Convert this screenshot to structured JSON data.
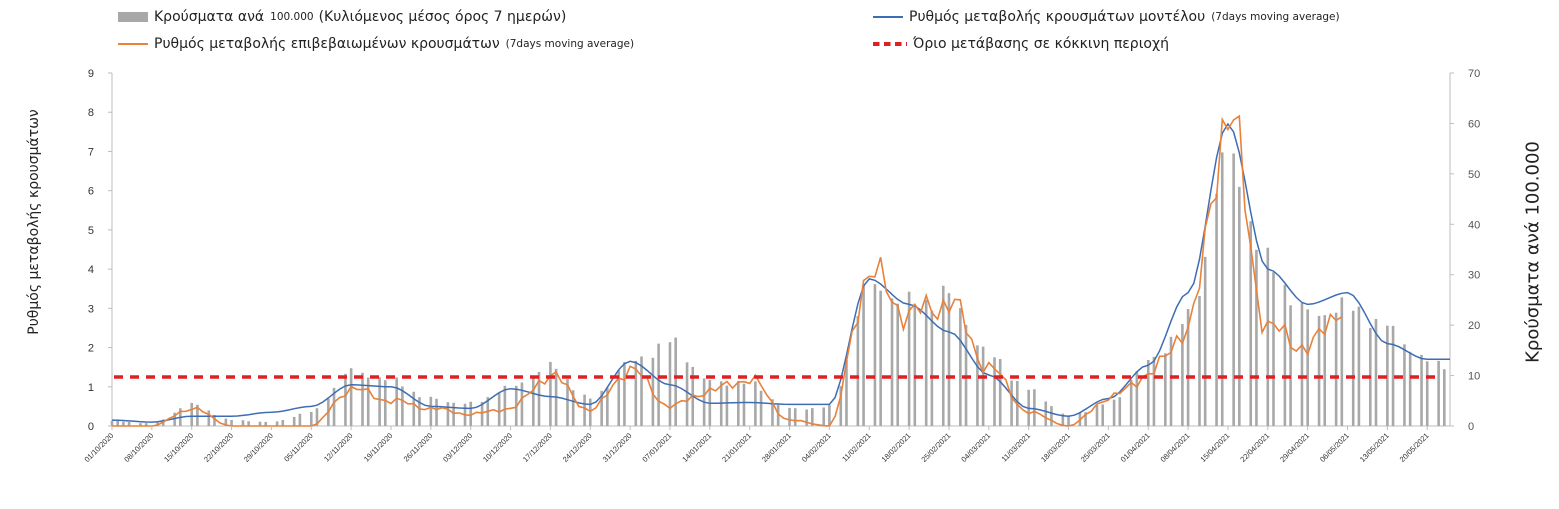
{
  "legend": {
    "bars_label": "Κρούσματα ανά",
    "bars_sub": "100.000",
    "bars_label2": "(Κυλιόμενος μέσος όρος 7 ημερών)",
    "model_label": "Ρυθμός μεταβολής κρουσμάτων μοντέλου",
    "model_sub": "(7days moving average)",
    "confirmed_label": "Ρυθμός μεταβολής επιβεβαιωμένων κρουσμάτων",
    "confirmed_sub": "(7days moving average)",
    "threshold_label": "Όριο μετάβασης σε κόκκινη περιοχή"
  },
  "colors": {
    "bars": "#a8a8a8",
    "model": "#3d6db5",
    "confirmed": "#e8813a",
    "threshold": "#e02020"
  },
  "chart_data": {
    "type": "bar+line",
    "ylabel_left": "Ρυθμός μεταβολής κρουσμάτων",
    "ylabel_right": "Κρούσματα ανά 100.000",
    "ylim_left": [
      0,
      9
    ],
    "ylim_right": [
      0,
      70
    ],
    "yticks_left": [
      "0",
      "1",
      "2",
      "3",
      "4",
      "5",
      "6",
      "7",
      "8",
      "9"
    ],
    "yticks_right": [
      "0",
      "10",
      "20",
      "30",
      "40",
      "50",
      "60",
      "70"
    ],
    "xticks": [
      "01/10/2020",
      "08/10/2020",
      "15/10/2020",
      "22/10/2020",
      "29/10/2020",
      "05/11/2020",
      "12/11/2020",
      "19/11/2020",
      "26/11/2020",
      "03/12/2020",
      "10/12/2020",
      "17/12/2020",
      "24/12/2020",
      "31/12/2020",
      "07/01/2021",
      "14/01/2021",
      "21/01/2021",
      "28/01/2021",
      "04/02/2021",
      "11/02/2021",
      "18/02/2021",
      "25/02/2021",
      "04/03/2021",
      "11/03/2021",
      "18/03/2021",
      "25/03/2021",
      "01/04/2021",
      "08/04/2021",
      "15/04/2021",
      "22/04/2021",
      "29/04/2021",
      "06/05/2021",
      "13/05/2021",
      "20/05/2021"
    ],
    "threshold": 1.25,
    "week_cases_per_100k": [
      1.0,
      0.5,
      4.2,
      1.2,
      0.8,
      2.8,
      10.5,
      9.0,
      5.5,
      4.5,
      7.5,
      11.5,
      5.5,
      13.0,
      16.5,
      8.5,
      8.5,
      3.5,
      3.8,
      27.0,
      24.0,
      26.5,
      14.5,
      7.0,
      2.0,
      4.5,
      13.0,
      21.0,
      52.0,
      32.0,
      23.0,
      24.0,
      19.0,
      12.5
    ],
    "week_model_rate": [
      0.15,
      0.1,
      0.25,
      0.25,
      0.35,
      0.5,
      1.05,
      1.0,
      0.5,
      0.45,
      0.95,
      0.75,
      0.55,
      1.65,
      1.05,
      0.58,
      0.6,
      0.55,
      0.55,
      3.75,
      3.1,
      2.4,
      1.3,
      0.45,
      0.25,
      0.7,
      1.55,
      3.4,
      7.7,
      4.0,
      3.1,
      3.4,
      2.1,
      1.7
    ],
    "week_confirmed_rate": [
      0.0,
      0.0,
      0.45,
      0.0,
      0.0,
      0.0,
      0.95,
      0.65,
      0.45,
      0.3,
      0.45,
      1.3,
      0.4,
      1.45,
      0.5,
      0.9,
      1.2,
      0.15,
      0.0,
      3.9,
      2.85,
      3.15,
      1.5,
      0.35,
      0.0,
      0.7,
      1.3,
      2.5,
      7.9,
      2.5,
      2.0,
      3.2,
      null,
      null
    ],
    "series": [
      {
        "name": "Κρούσματα ανά 100.000 (Κυλιόμενος μέσος όρος 7 ημερών)",
        "axis": "right",
        "kind": "bar"
      },
      {
        "name": "Ρυθμός μεταβολής κρουσμάτων μοντέλου",
        "axis": "left",
        "kind": "line"
      },
      {
        "name": "Ρυθμός μεταβολής επιβεβαιωμένων κρουσμάτων",
        "axis": "left",
        "kind": "line"
      },
      {
        "name": "Όριο μετάβασης σε κόκκινη περιοχή",
        "axis": "left",
        "kind": "dashed-line"
      }
    ]
  }
}
